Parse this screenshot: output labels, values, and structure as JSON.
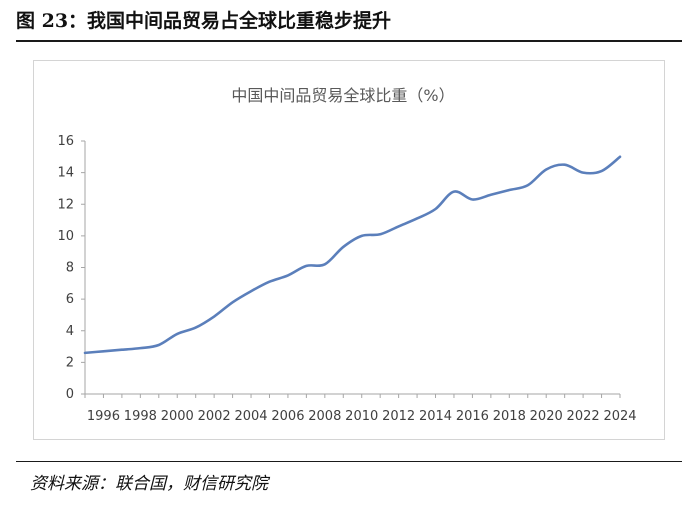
{
  "figure": {
    "title": "图 23：我国中间品贸易占全球比重稳步提升",
    "source": "资料来源：联合国，财信研究院"
  },
  "chart_data": {
    "type": "line",
    "title": "中国中间品贸易全球比重（%）",
    "xlabel": "",
    "ylabel": "",
    "x": [
      1995,
      1996,
      1997,
      1998,
      1999,
      2000,
      2001,
      2002,
      2003,
      2004,
      2005,
      2006,
      2007,
      2008,
      2009,
      2010,
      2011,
      2012,
      2013,
      2014,
      2015,
      2016,
      2017,
      2018,
      2019,
      2020,
      2021,
      2022,
      2023,
      2024
    ],
    "series": [
      {
        "name": "",
        "color": "#5b7fbb",
        "values": [
          2.6,
          2.7,
          2.8,
          2.9,
          3.1,
          3.8,
          4.2,
          4.9,
          5.8,
          6.5,
          7.1,
          7.5,
          8.1,
          8.2,
          9.3,
          10.0,
          10.1,
          10.6,
          11.1,
          11.7,
          12.8,
          12.3,
          12.6,
          12.9,
          13.2,
          14.2,
          14.5,
          14.0,
          14.1,
          15.0
        ]
      }
    ],
    "xticks": [
      "1996",
      "1998",
      "2000",
      "2002",
      "2004",
      "2006",
      "2008",
      "2010",
      "2012",
      "2014",
      "2016",
      "2018",
      "2020",
      "2022",
      "2024"
    ],
    "yticks": [
      "0",
      "2",
      "4",
      "6",
      "8",
      "10",
      "12",
      "14",
      "16"
    ],
    "xlim": [
      1995,
      2024
    ],
    "ylim": [
      0,
      16
    ],
    "grid": false,
    "legend": "none"
  }
}
